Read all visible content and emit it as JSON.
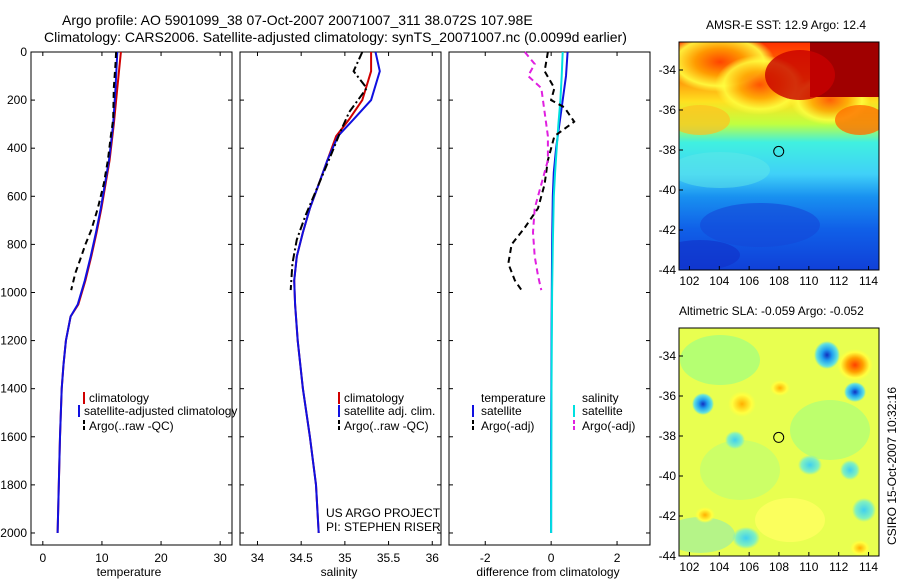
{
  "title_line1": "Argo profile: AO 5901099_38 07-Oct-2007 20071007_311 38.072S 107.98E",
  "title_line2": "Climatology: CARS2006. Satellite-adjusted climatology: synTS_20071007.nc (0.0099d earlier)",
  "sst_title": "AMSR-E SST: 12.9 Argo: 12.4",
  "sla_title": "Altimetric SLA: -0.059 Argo: -0.052",
  "side_label": "CSIRO 15-Oct-2007 10:32:16",
  "project_line1": "US ARGO PROJECT",
  "project_line2": "PI: STEPHEN RISER",
  "colors": {
    "red": "#d00000",
    "blue": "#1010e0",
    "black": "#000000",
    "cyan": "#00e0e0",
    "magenta": "#e020e0"
  },
  "chart_data": [
    {
      "type": "line",
      "xlabel": "temperature",
      "ylabel": "",
      "xlim": [
        -2,
        32
      ],
      "ylim": [
        2050,
        0
      ],
      "x_ticks": [
        "0",
        "10",
        "20",
        "30"
      ],
      "y_ticks": [
        "0",
        "200",
        "400",
        "600",
        "800",
        "1000",
        "1200",
        "1400",
        "1600",
        "1800",
        "2000"
      ],
      "legend": [
        "climatology",
        "satellite-adjusted climatology",
        "Argo(..raw -QC)"
      ],
      "series": [
        {
          "name": "climatology",
          "color": "red",
          "style": "solid",
          "x": [
            13.2,
            13.0,
            12.6,
            12.0,
            11.3,
            10.6,
            9.9,
            9.1,
            8.2,
            7.2,
            6.0,
            4.7,
            3.9,
            3.5,
            3.2,
            2.9,
            2.7,
            2.5
          ],
          "y": [
            0,
            50,
            150,
            300,
            450,
            550,
            650,
            750,
            850,
            950,
            1050,
            1100,
            1200,
            1300,
            1400,
            1600,
            1800,
            2000
          ]
        },
        {
          "name": "satellite-adjusted climatology",
          "color": "blue",
          "style": "solid",
          "x": [
            12.6,
            12.5,
            12.3,
            11.9,
            11.2,
            10.5,
            9.8,
            9.0,
            8.1,
            7.1,
            5.9,
            4.7,
            3.9,
            3.5,
            3.2,
            2.9,
            2.7,
            2.5
          ],
          "y": [
            0,
            50,
            150,
            300,
            450,
            550,
            650,
            750,
            850,
            950,
            1050,
            1100,
            1200,
            1300,
            1400,
            1600,
            1800,
            2000
          ]
        },
        {
          "name": "Argo(..raw -QC)",
          "color": "black",
          "style": "dashed",
          "x": [
            12.4,
            12.3,
            12.0,
            11.9,
            11.5,
            11.0,
            10.3,
            9.3,
            8.2,
            7.2,
            6.5,
            5.5,
            4.8
          ],
          "y": [
            0,
            50,
            150,
            280,
            350,
            450,
            550,
            650,
            740,
            800,
            850,
            920,
            990
          ]
        }
      ]
    },
    {
      "type": "line",
      "xlabel": "salinity",
      "ylabel": "",
      "xlim": [
        33.8,
        36.1
      ],
      "ylim": [
        2050,
        0
      ],
      "x_ticks": [
        "34",
        "34.5",
        "35",
        "35.5",
        "36"
      ],
      "legend": [
        "climatology",
        "satellite adj. clim.",
        "Argo(..raw -QC)"
      ],
      "series": [
        {
          "name": "climatology",
          "color": "red",
          "style": "solid",
          "x": [
            35.3,
            35.3,
            35.2,
            35.05,
            34.9,
            34.8,
            34.7,
            34.6,
            34.52,
            34.45,
            34.42,
            34.43,
            34.46,
            34.52,
            34.6,
            34.67,
            34.7
          ],
          "y": [
            0,
            80,
            200,
            280,
            350,
            450,
            550,
            650,
            750,
            850,
            950,
            1050,
            1200,
            1400,
            1600,
            1800,
            2000
          ]
        },
        {
          "name": "satellite adj. clim.",
          "color": "blue",
          "style": "solid",
          "x": [
            35.35,
            35.4,
            35.3,
            35.1,
            34.92,
            34.8,
            34.7,
            34.6,
            34.52,
            34.45,
            34.42,
            34.43,
            34.46,
            34.52,
            34.6,
            34.67,
            34.7
          ],
          "y": [
            0,
            80,
            200,
            280,
            350,
            450,
            550,
            650,
            750,
            850,
            950,
            1050,
            1200,
            1400,
            1600,
            1800,
            2000
          ]
        },
        {
          "name": "Argo(..raw -QC)",
          "color": "black",
          "style": "dashdot",
          "x": [
            35.2,
            35.1,
            35.25,
            35.05,
            34.95,
            34.85,
            34.7,
            34.55,
            34.45,
            34.4,
            34.38
          ],
          "y": [
            0,
            80,
            150,
            250,
            330,
            420,
            550,
            680,
            780,
            880,
            990
          ]
        }
      ]
    },
    {
      "type": "line",
      "xlabel": "difference from climatology",
      "ylabel": "",
      "xlim": [
        -3.1,
        3.0
      ],
      "ylim": [
        2050,
        0
      ],
      "x_ticks": [
        "-2",
        "0",
        "2"
      ],
      "legend": [
        "temperature",
        "satellite",
        "Argo(-adj)",
        "salinity",
        "satellite",
        "Argo(-adj)"
      ],
      "series": [
        {
          "name": "satellite",
          "color": "blue",
          "style": "solid",
          "x": [
            0.5,
            0.45,
            0.35,
            0.25,
            0.15,
            0.08,
            0.05,
            0.03,
            0.02,
            0.01,
            0.0,
            0.0
          ],
          "y": [
            0,
            100,
            200,
            300,
            400,
            500,
            600,
            800,
            1000,
            1200,
            1600,
            2000
          ]
        },
        {
          "name": "satellite",
          "color": "cyan",
          "style": "solid",
          "x": [
            0.35,
            0.32,
            0.28,
            0.22,
            0.17,
            0.12,
            0.08,
            0.05,
            0.03,
            0.01,
            0.0
          ],
          "y": [
            0,
            100,
            200,
            300,
            400,
            500,
            600,
            800,
            1000,
            1400,
            2000
          ]
        },
        {
          "name": "Argo(-adj)",
          "color": "black",
          "style": "dashed",
          "x": [
            -0.1,
            -0.2,
            0.1,
            0.0,
            0.4,
            0.7,
            0.1,
            -0.1,
            -0.2,
            -0.4,
            -0.8,
            -1.2,
            -1.3,
            -1.1,
            -0.9
          ],
          "y": [
            0,
            80,
            150,
            200,
            230,
            290,
            350,
            450,
            550,
            650,
            730,
            800,
            880,
            950,
            990
          ]
        },
        {
          "name": "Argo(-adj)",
          "color": "magenta",
          "style": "dashed",
          "x": [
            -0.8,
            -0.5,
            -0.7,
            -0.3,
            -0.2,
            -0.1,
            -0.1,
            -0.3,
            -0.5,
            -0.55,
            -0.5,
            -0.4,
            -0.3
          ],
          "y": [
            0,
            50,
            100,
            150,
            250,
            350,
            450,
            550,
            650,
            750,
            850,
            930,
            990
          ]
        }
      ]
    },
    {
      "type": "heatmap",
      "title": "AMSR-E SST: 12.9 Argo: 12.4",
      "xlim": [
        101.3,
        114.7
      ],
      "ylim": [
        -44,
        -32.6
      ],
      "x_ticks": [
        "102",
        "104",
        "106",
        "108",
        "110",
        "112",
        "114"
      ],
      "y_ticks": [
        "-34",
        "-36",
        "-38",
        "-40",
        "-42",
        "-44"
      ],
      "marker": {
        "lon": 107.98,
        "lat": -38.07
      }
    },
    {
      "type": "heatmap",
      "title": "Altimetric SLA: -0.059 Argo: -0.052",
      "xlim": [
        101.3,
        114.7
      ],
      "ylim": [
        -44,
        -32.6
      ],
      "x_ticks": [
        "102",
        "104",
        "106",
        "108",
        "110",
        "112",
        "114"
      ],
      "y_ticks": [
        "-34",
        "-36",
        "-38",
        "-40",
        "-42",
        "-44"
      ],
      "marker": {
        "lon": 107.98,
        "lat": -38.07
      }
    }
  ]
}
